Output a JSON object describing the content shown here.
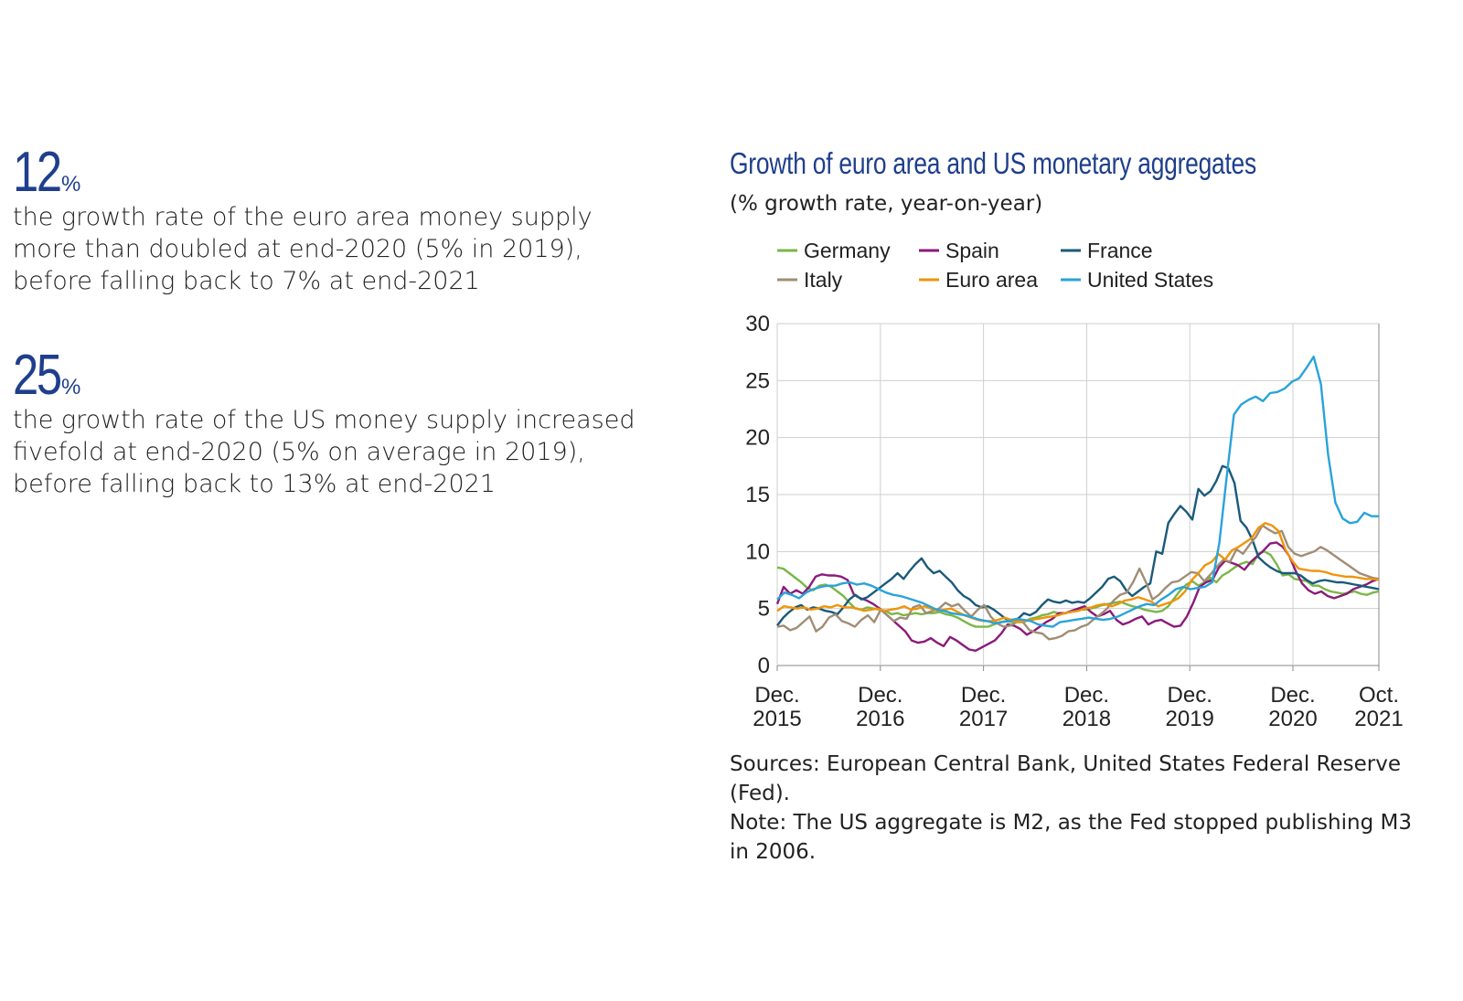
{
  "stats": [
    {
      "number": "12",
      "unit": "%",
      "text": [
        "the growth rate of the euro area money supply",
        "more than doubled at end-2020 (5% in 2019),",
        "before falling back to 7% at end-2021"
      ]
    },
    {
      "number": "25",
      "unit": "%",
      "text": [
        "the growth rate of the US money supply increased",
        "fivefold at end-2020 (5% on average in 2019),",
        "before falling back to 13% at end-2021"
      ]
    }
  ],
  "footnote": [
    "Sources: European Central Bank, United States Federal Reserve (Fed).",
    "Note: The US aggregate is M2, as the Fed stopped publishing M3",
    "in 2006."
  ],
  "chart_data": {
    "type": "line",
    "title": "Growth of euro area and US monetary aggregates",
    "subtitle": "(% growth rate, year-on-year)",
    "x_start": "2015-12",
    "x_end": "2021-10",
    "x_ticks": [
      {
        "label": [
          "Dec.",
          "2015"
        ],
        "date": "2015-12"
      },
      {
        "label": [
          "Dec.",
          "2016"
        ],
        "date": "2016-12"
      },
      {
        "label": [
          "Dec.",
          "2017"
        ],
        "date": "2017-12"
      },
      {
        "label": [
          "Dec.",
          "2018"
        ],
        "date": "2018-12"
      },
      {
        "label": [
          "Dec.",
          "2019"
        ],
        "date": "2019-12"
      },
      {
        "label": [
          "Dec.",
          "2020"
        ],
        "date": "2020-12"
      },
      {
        "label": [
          "Oct.",
          "2021"
        ],
        "date": "2021-10"
      }
    ],
    "ylim": [
      0,
      30
    ],
    "y_ticks": [
      0,
      5,
      10,
      15,
      20,
      25,
      30
    ],
    "grid": true,
    "legend_position": "top-left",
    "series": [
      {
        "name": "Germany",
        "color": "#7ab648",
        "values": [
          8.6,
          8.5,
          8.1,
          7.7,
          7.3,
          6.8,
          6.6,
          7,
          7.1,
          6.9,
          6.5,
          6.1,
          5.5,
          5,
          4.9,
          5.1,
          5,
          4.9,
          4.8,
          4.5,
          4.6,
          4.4,
          4.5,
          4.6,
          4.5,
          4.6,
          4.6,
          4.7,
          4.5,
          4.4,
          4.2,
          3.9,
          3.6,
          3.4,
          3.4,
          3.4,
          3.6,
          3.8,
          3.9,
          3.8,
          3.9,
          3.8,
          4.1,
          4.2,
          4.4,
          4.5,
          4.7,
          4.5,
          4.6,
          4.8,
          5,
          4.9,
          5,
          5.1,
          5.3,
          5.4,
          5.5,
          5.6,
          5.4,
          5.2,
          5.1,
          4.9,
          4.8,
          4.7,
          4.8,
          5.2,
          5.9,
          6.6,
          7.1,
          7.4,
          7,
          7.3,
          7.7,
          7.3,
          7.9,
          8.2,
          8.6,
          8.9,
          9.1,
          8.9,
          9.8,
          10,
          9.7,
          8.9,
          7.9,
          8,
          7.6,
          7.5,
          7.4,
          7,
          7,
          6.7,
          6.5,
          6.4,
          6.3,
          6.4,
          6.5,
          6.3,
          6.2,
          6.4,
          6.5
        ]
      },
      {
        "name": "Spain",
        "color": "#8b1a7a",
        "values": [
          5.4,
          6.9,
          6.3,
          6.6,
          6.3,
          6.9,
          7.8,
          8,
          7.9,
          7.9,
          7.8,
          7.5,
          6.2,
          5.9,
          5.7,
          5.4,
          5,
          4.5,
          4,
          3.5,
          3,
          2.2,
          2,
          2.1,
          2.4,
          2,
          1.7,
          2.5,
          2.2,
          1.8,
          1.4,
          1.3,
          1.6,
          1.9,
          2.2,
          2.8,
          3.6,
          3.5,
          3.2,
          2.7,
          3,
          3.4,
          3.8,
          4.1,
          4.6,
          4.6,
          4.8,
          5,
          5.2,
          4.7,
          4.3,
          4.5,
          4.8,
          4,
          3.6,
          3.8,
          4.1,
          4.3,
          3.6,
          3.9,
          4,
          3.7,
          3.4,
          3.5,
          4.3,
          5.5,
          6.9,
          7.3,
          7.5,
          8.6,
          9.2,
          9,
          8.8,
          8.4,
          9.1,
          9.6,
          10.1,
          10.7,
          10.8,
          10.4,
          9.6,
          8.3,
          7.2,
          6.6,
          6.3,
          6.5,
          6.1,
          5.9,
          6.1,
          6.3,
          6.7,
          6.9,
          7.1,
          7.4,
          7.6
        ]
      },
      {
        "name": "France",
        "color": "#1a5a7a",
        "values": [
          3.5,
          4.2,
          4.7,
          5.1,
          5.3,
          4.9,
          5.1,
          5,
          4.8,
          4.7,
          4.5,
          5.1,
          5.8,
          6.2,
          5.8,
          6,
          6.4,
          6.8,
          7.2,
          7.6,
          8.1,
          7.6,
          8.3,
          8.9,
          9.4,
          8.6,
          8.1,
          8.3,
          7.8,
          7.3,
          6.6,
          6.1,
          5.8,
          5.3,
          5.1,
          5.2,
          4.9,
          4.5,
          4.1,
          4,
          4.1,
          4.6,
          4.4,
          4.7,
          5.3,
          5.8,
          5.6,
          5.5,
          5.7,
          5.5,
          5.6,
          5.5,
          5.9,
          6.4,
          6.9,
          7.6,
          7.8,
          7.4,
          6.6,
          6.1,
          6.5,
          6.9,
          7.2,
          10,
          9.8,
          12.5,
          13.3,
          14,
          13.5,
          12.8,
          15.5,
          14.9,
          15.3,
          16.2,
          17.5,
          17.3,
          16,
          12.7,
          12.1,
          11,
          9.5,
          9,
          8.6,
          8.3,
          8.1,
          8.1,
          8.1,
          7.9,
          7.5,
          7.2,
          7.4,
          7.5,
          7.4,
          7.3,
          7.3,
          7.2,
          7.1,
          7,
          6.9,
          6.8,
          6.7
        ]
      },
      {
        "name": "Italy",
        "color": "#a08d75",
        "values": [
          3.4,
          3.5,
          3.1,
          3.3,
          3.8,
          4.3,
          3,
          3.4,
          4.2,
          4.5,
          3.9,
          3.7,
          3.4,
          4,
          4.4,
          3.8,
          4.9,
          4.4,
          3.9,
          4.2,
          4.1,
          5.1,
          5.3,
          4.6,
          4.8,
          5,
          5.5,
          5.2,
          5.4,
          4.8,
          4.3,
          4.9,
          5.3,
          4.3,
          3.7,
          3.4,
          3.5,
          3.8,
          3.8,
          3.1,
          2.9,
          2.8,
          2.3,
          2.4,
          2.6,
          3,
          3.1,
          3.4,
          3.6,
          4.1,
          4.5,
          5,
          5.7,
          6.2,
          6.4,
          7.3,
          8.5,
          7.3,
          5.8,
          6.2,
          6.8,
          7.3,
          7.4,
          7.8,
          8.2,
          8.1,
          7.4,
          8,
          8.7,
          9.3,
          9.1,
          10.2,
          9.8,
          10.6,
          11.3,
          12.3,
          11.9,
          11.6,
          11.8,
          10.4,
          9.8,
          9.6,
          9.8,
          10,
          10.4,
          10.1,
          9.7,
          9.3,
          8.9,
          8.5,
          8.1,
          7.9,
          7.7,
          7.6
        ]
      },
      {
        "name": "Euro area",
        "color": "#f0940a",
        "values": [
          4.8,
          5.2,
          5.1,
          5,
          5.1,
          4.9,
          5,
          5.2,
          5.1,
          5.3,
          5.1,
          5.1,
          5,
          4.8,
          4.9,
          5,
          4.8,
          4.9,
          5,
          5.2,
          4.9,
          5,
          5.2,
          5,
          4.8,
          4.9,
          5,
          4.7,
          4.4,
          4.2,
          4,
          3.9,
          3.9,
          4,
          4.2,
          4,
          3.8,
          3.9,
          4,
          4.1,
          4.2,
          4.3,
          4.4,
          4.6,
          4.7,
          4.8,
          5,
          5.1,
          5.3,
          5.4,
          5.2,
          5.4,
          5.7,
          5.8,
          6,
          5.8,
          5.6,
          5.2,
          5.4,
          5.6,
          5.9,
          6.5,
          7.5,
          8.1,
          8.8,
          9.1,
          9.8,
          9.3,
          10.1,
          10.4,
          10.8,
          11.2,
          12.1,
          12.5,
          12.3,
          11.8,
          10.2,
          9.2,
          8.5,
          8.4,
          8.3,
          8.3,
          8.2,
          8,
          7.9,
          7.8,
          7.8,
          7.7,
          7.6,
          7.6,
          7.5
        ]
      },
      {
        "name": "United States",
        "color": "#29a3da",
        "values": [
          5.8,
          6.4,
          6.2,
          5.9,
          6.4,
          6.7,
          6.9,
          7,
          7,
          7.2,
          7.3,
          7.1,
          7.2,
          7,
          6.7,
          6.4,
          6.2,
          6.1,
          5.9,
          5.7,
          5.5,
          5.2,
          4.9,
          4.8,
          4.6,
          4.5,
          4.4,
          4.2,
          4,
          3.9,
          3.7,
          3.8,
          3.9,
          4.1,
          4,
          3.9,
          3.6,
          3.5,
          3.4,
          3.8,
          3.9,
          4,
          4.1,
          4.2,
          4.1,
          4,
          4.1,
          4.3,
          4.6,
          4.9,
          5.2,
          5.4,
          5.3,
          5.8,
          6.2,
          6.7,
          6.9,
          6.7,
          6.8,
          6.9,
          7.3,
          10.8,
          16.5,
          22,
          22.9,
          23.3,
          23.6,
          23.2,
          23.9,
          24,
          24.3,
          24.9,
          25.2,
          26.1,
          27.1,
          24.7,
          18.5,
          14.3,
          12.9,
          12.5,
          12.6,
          13.4,
          13.1,
          13.1
        ]
      }
    ]
  }
}
